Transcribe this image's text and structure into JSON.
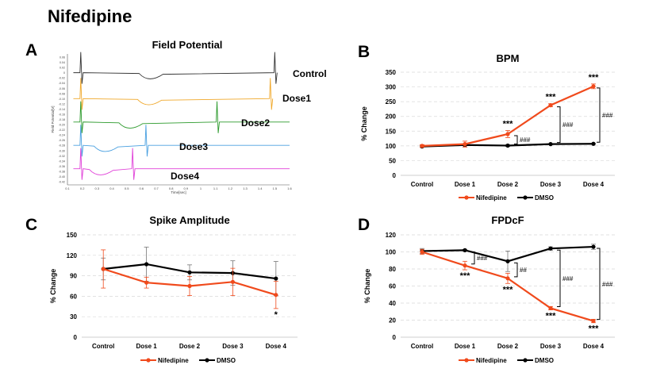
{
  "figure_title": "Nifedipine",
  "panel_letters": [
    "A",
    "B",
    "C",
    "D"
  ],
  "colors": {
    "nifedipine": "#f04a1c",
    "dmso": "#000000",
    "grid": "#d9d9d9",
    "traces": [
      "#333333",
      "#f0a82a",
      "#2c9a2c",
      "#4aa0e0",
      "#e040d8"
    ]
  },
  "chart_data": [
    {
      "panel": "A",
      "type": "line",
      "title": "Field Potential",
      "xlabel": "Time[sec]",
      "ylabel": "Field Potential[V]",
      "x_ticks": [
        "0.1",
        "0.2",
        "0.3",
        "0.4",
        "0.5",
        "0.6",
        "0.7",
        "0.8",
        "0.9",
        "1",
        "1.1",
        "1.2",
        "1.3",
        "1.4",
        "1.5",
        "1.6"
      ],
      "y_ticks": [
        "0.06",
        "0.04",
        "0.02",
        "0",
        "-0.02",
        "-0.04",
        "-0.06",
        "-0.08",
        "-0.10",
        "-0.12",
        "-0.14",
        "-0.16",
        "-0.18",
        "-0.20",
        "-0.22",
        "-0.24",
        "-0.26",
        "-0.28",
        "-0.30",
        "-0.32",
        "-0.34",
        "-0.36",
        "-0.38",
        "-0.40",
        "-0.42"
      ],
      "xlim": [
        0.1,
        1.6
      ],
      "series": [
        {
          "name": "Control",
          "color": "#333333",
          "spike_times": [
            0.19,
            1.5
          ],
          "baseline": 0.0
        },
        {
          "name": "Dose1",
          "color": "#f0a82a",
          "spike_times": [
            0.19,
            1.47
          ],
          "baseline": -0.1
        },
        {
          "name": "Dose2",
          "color": "#2c9a2c",
          "spike_times": [
            0.19,
            1.11
          ],
          "baseline": -0.19
        },
        {
          "name": "Dose3",
          "color": "#4aa0e0",
          "spike_times": [
            0.19,
            0.63
          ],
          "baseline": -0.28
        },
        {
          "name": "Dose4",
          "color": "#e040d8",
          "spike_times": [
            0.19,
            0.54
          ],
          "baseline": -0.37
        }
      ]
    },
    {
      "panel": "B",
      "type": "line",
      "title": "BPM",
      "ylabel": "% Change",
      "categories": [
        "Control",
        "Dose 1",
        "Dose 2",
        "Dose 3",
        "Dose 4"
      ],
      "ylim": [
        0,
        350
      ],
      "yticks": [
        0,
        50,
        100,
        150,
        200,
        250,
        300,
        350
      ],
      "series": [
        {
          "name": "Nifedipine",
          "color": "#f04a1c",
          "values": [
            100,
            106,
            140,
            238,
            302
          ],
          "errors": [
            4,
            10,
            12,
            5,
            8
          ]
        },
        {
          "name": "DMSO",
          "color": "#000000",
          "values": [
            98,
            103,
            101,
            106,
            107
          ],
          "errors": [
            3,
            3,
            3,
            2,
            2
          ]
        }
      ],
      "stars": [
        {
          "index": 2,
          "text": "***"
        },
        {
          "index": 3,
          "text": "***"
        },
        {
          "index": 4,
          "text": "***"
        }
      ],
      "hash": [
        {
          "index": 2,
          "text": "###"
        },
        {
          "index": 3,
          "text": "###"
        },
        {
          "index": 4,
          "text": "###"
        }
      ]
    },
    {
      "panel": "C",
      "type": "line",
      "title": "Spike Amplitude",
      "ylabel": "% Change",
      "categories": [
        "Control",
        "Dose 1",
        "Dose 2",
        "Dose 3",
        "Dose 4"
      ],
      "ylim": [
        0,
        150
      ],
      "yticks": [
        0,
        30,
        60,
        90,
        120,
        150
      ],
      "series": [
        {
          "name": "Nifedipine",
          "color": "#f04a1c",
          "values": [
            100,
            80,
            75,
            81,
            62
          ],
          "errors": [
            28,
            8,
            14,
            20,
            20
          ]
        },
        {
          "name": "DMSO",
          "color": "#000000",
          "values": [
            100,
            107,
            95,
            94,
            86
          ],
          "errors": [
            16,
            25,
            11,
            18,
            25
          ]
        }
      ],
      "stars": [
        {
          "index": 4,
          "text": "*"
        }
      ],
      "hash": []
    },
    {
      "panel": "D",
      "type": "line",
      "title": "FPDcF",
      "ylabel": "% Change",
      "categories": [
        "Control",
        "Dose 1",
        "Dose 2",
        "Dose 3",
        "Dose 4"
      ],
      "ylim": [
        0,
        120
      ],
      "yticks": [
        0,
        20,
        40,
        60,
        80,
        100,
        120
      ],
      "series": [
        {
          "name": "Nifedipine",
          "color": "#f04a1c",
          "values": [
            100,
            84,
            69,
            34,
            19
          ],
          "errors": [
            3,
            5,
            6,
            2,
            2
          ]
        },
        {
          "name": "DMSO",
          "color": "#000000",
          "values": [
            101,
            102,
            89,
            104,
            106
          ],
          "errors": [
            3,
            1,
            12,
            2,
            3
          ]
        }
      ],
      "stars": [
        {
          "index": 1,
          "text": "***"
        },
        {
          "index": 2,
          "text": "***"
        },
        {
          "index": 3,
          "text": "***"
        },
        {
          "index": 4,
          "text": "***"
        }
      ],
      "hash": [
        {
          "index": 1,
          "text": "###"
        },
        {
          "index": 2,
          "text": "##"
        },
        {
          "index": 3,
          "text": "###"
        },
        {
          "index": 4,
          "text": "###"
        }
      ]
    }
  ]
}
